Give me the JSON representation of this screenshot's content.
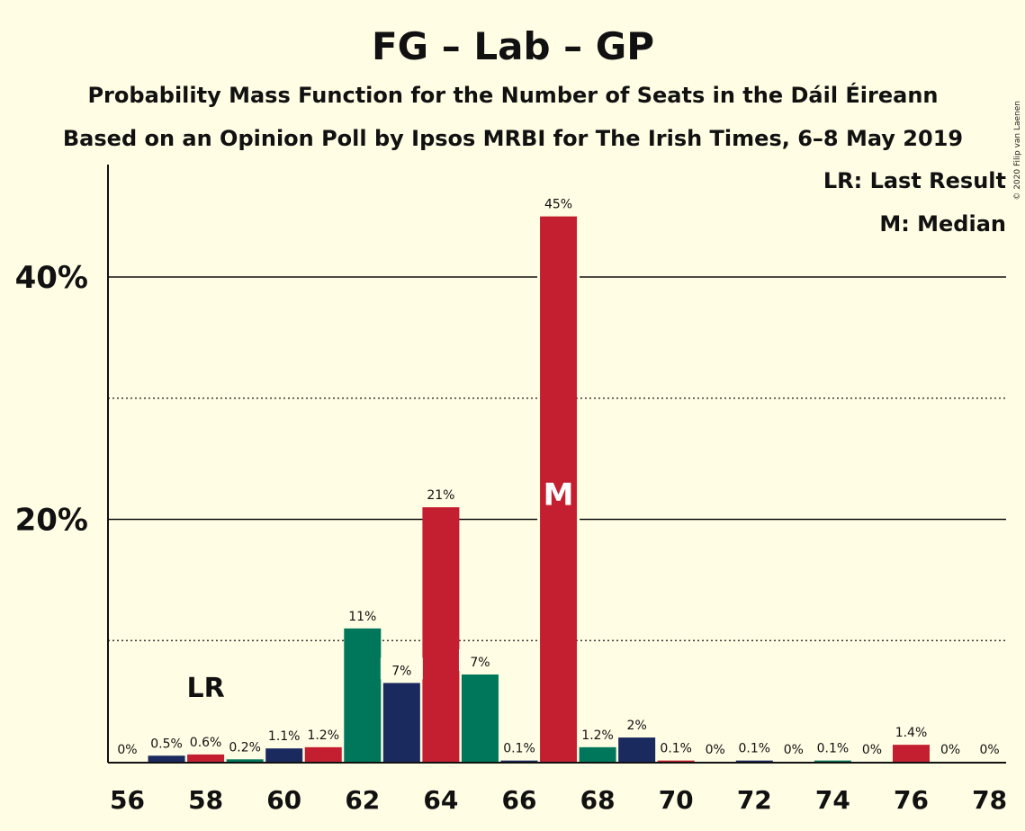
{
  "chart_data": {
    "type": "bar",
    "title": "FG – Lab – GP",
    "subtitle": "Probability Mass Function for the Number of Seats in the Dáil Éireann",
    "subtitle2": "Based on an Opinion Poll by Ipsos MRBI for The Irish Times, 6–8 May 2019",
    "credit": "© 2020 Filip van Laenen",
    "legend": [
      "LR: Last Result",
      "M: Median"
    ],
    "lr_label": "LR",
    "median_label": "M",
    "last_result_seat": 58,
    "median_seat": 67,
    "ylim": [
      0,
      49
    ],
    "yticks": [
      {
        "value": 20,
        "label": "20%"
      },
      {
        "value": 40,
        "label": "40%"
      }
    ],
    "ygrid_dotted": [
      10,
      30
    ],
    "xticks": [
      56,
      58,
      60,
      62,
      64,
      66,
      68,
      70,
      72,
      74,
      76,
      78
    ],
    "colors": {
      "FG": "#1a2a5e",
      "Lab": "#c41f30",
      "GP": "#00775a",
      "background": "#fffde4"
    },
    "bars": [
      {
        "seat": 56,
        "value": 0,
        "label": "0%",
        "party": "FG"
      },
      {
        "seat": 57,
        "value": 0.5,
        "label": "0.5%",
        "party": "FG"
      },
      {
        "seat": 58,
        "value": 0.6,
        "label": "0.6%",
        "party": "Lab"
      },
      {
        "seat": 59,
        "value": 0.2,
        "label": "0.2%",
        "party": "GP"
      },
      {
        "seat": 60,
        "value": 1.1,
        "label": "1.1%",
        "party": "FG"
      },
      {
        "seat": 61,
        "value": 1.2,
        "label": "1.2%",
        "party": "Lab"
      },
      {
        "seat": 62,
        "value": 11,
        "label": "11%",
        "party": "GP"
      },
      {
        "seat": 63,
        "value": 6.5,
        "label": "7%",
        "party": "FG"
      },
      {
        "seat": 64,
        "value": 21,
        "label": "21%",
        "party": "Lab"
      },
      {
        "seat": 65,
        "value": 7.2,
        "label": "7%",
        "party": "GP"
      },
      {
        "seat": 66,
        "value": 0.1,
        "label": "0.1%",
        "party": "FG"
      },
      {
        "seat": 67,
        "value": 45,
        "label": "45%",
        "party": "Lab"
      },
      {
        "seat": 68,
        "value": 1.2,
        "label": "1.2%",
        "party": "GP"
      },
      {
        "seat": 69,
        "value": 2,
        "label": "2%",
        "party": "FG"
      },
      {
        "seat": 70,
        "value": 0.1,
        "label": "0.1%",
        "party": "Lab"
      },
      {
        "seat": 71,
        "value": 0,
        "label": "0%",
        "party": "GP"
      },
      {
        "seat": 72,
        "value": 0.1,
        "label": "0.1%",
        "party": "FG"
      },
      {
        "seat": 73,
        "value": 0,
        "label": "0%",
        "party": "Lab"
      },
      {
        "seat": 74,
        "value": 0.1,
        "label": "0.1%",
        "party": "GP"
      },
      {
        "seat": 75,
        "value": 0,
        "label": "0%",
        "party": "FG"
      },
      {
        "seat": 76,
        "value": 1.4,
        "label": "1.4%",
        "party": "Lab"
      },
      {
        "seat": 77,
        "value": 0,
        "label": "0%",
        "party": "GP"
      },
      {
        "seat": 78,
        "value": 0,
        "label": "0%",
        "party": "FG"
      }
    ]
  }
}
